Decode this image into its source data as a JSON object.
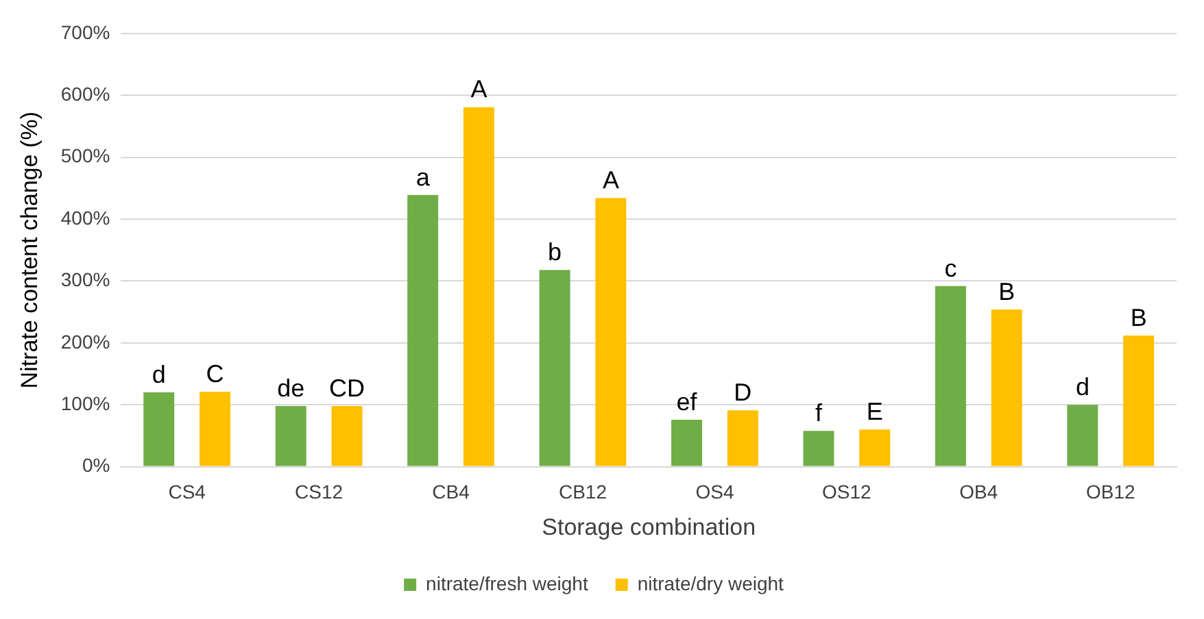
{
  "chart_data": {
    "type": "bar",
    "xlabel": "Storage combination",
    "ylabel": "Nitrate content change (%)",
    "categories": [
      "CS4",
      "CS12",
      "CB4",
      "CB12",
      "OS4",
      "OS12",
      "OB4",
      "OB12"
    ],
    "series": [
      {
        "name": "nitrate/fresh weight",
        "color": "#70ad47",
        "values": [
          120,
          98,
          439,
          318,
          76,
          58,
          292,
          100
        ],
        "value_labels": [
          "d",
          "de",
          "a",
          "b",
          "ef",
          "f",
          "c",
          "d"
        ]
      },
      {
        "name": "nitrate/dry weight",
        "color": "#ffc000",
        "values": [
          121,
          98,
          581,
          434,
          91,
          60,
          254,
          212
        ],
        "value_labels": [
          "C",
          "CD",
          "A",
          "A",
          "D",
          "E",
          "B",
          "B"
        ]
      }
    ],
    "ylim": [
      0,
      700
    ],
    "yticks": [
      {
        "value": 0,
        "label": "0%"
      },
      {
        "value": 100,
        "label": "100%"
      },
      {
        "value": 200,
        "label": "200%"
      },
      {
        "value": 300,
        "label": "300%"
      },
      {
        "value": 400,
        "label": "400%"
      },
      {
        "value": 500,
        "label": "500%"
      },
      {
        "value": 600,
        "label": "600%"
      },
      {
        "value": 700,
        "label": "700%"
      }
    ],
    "grid": "y",
    "legend": "bottom"
  }
}
